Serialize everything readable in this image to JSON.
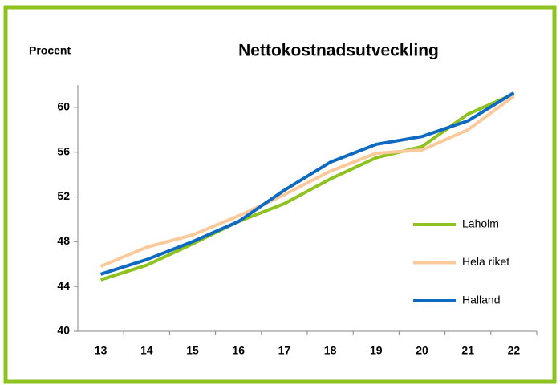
{
  "chart_data": {
    "type": "line",
    "title": "Nettokostnadsutveckling",
    "ylabel": "Procent",
    "categories": [
      "13",
      "14",
      "15",
      "16",
      "17",
      "18",
      "19",
      "20",
      "21",
      "22"
    ],
    "series": [
      {
        "name": "Laholm",
        "color": "#8dc21f",
        "values": [
          44.6,
          45.9,
          47.8,
          49.8,
          51.4,
          53.6,
          55.5,
          56.5,
          59.4,
          61.2
        ]
      },
      {
        "name": "Hela riket",
        "color": "#fcc99b",
        "values": [
          45.8,
          47.5,
          48.6,
          50.3,
          52.2,
          54.3,
          55.9,
          56.2,
          58.0,
          61.0
        ]
      },
      {
        "name": "Halland",
        "color": "#0e6ac0",
        "values": [
          45.1,
          46.4,
          48.0,
          49.8,
          52.6,
          55.1,
          56.7,
          57.4,
          58.8,
          61.3
        ]
      }
    ],
    "ylim": [
      40,
      62
    ],
    "yticks": [
      40,
      44,
      48,
      52,
      56,
      60
    ],
    "grid": false,
    "legend": "right"
  }
}
